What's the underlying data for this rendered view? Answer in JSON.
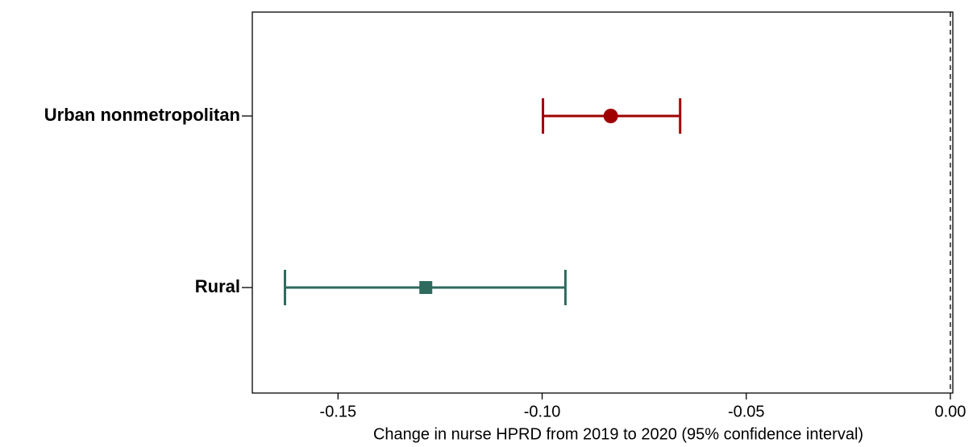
{
  "chart_data": {
    "type": "forest",
    "x_label": "Change in nurse HPRD from 2019 to 2020 (95% confidence interval)",
    "categories": [
      "Urban nonmetropolitan",
      "Rural"
    ],
    "values": [
      -0.0832,
      -0.1285
    ],
    "lower": [
      -0.0998,
      -0.163
    ],
    "upper": [
      -0.0662,
      -0.0943
    ],
    "colors": [
      "#a00000",
      "#2e6b5e"
    ],
    "markers": [
      "circle",
      "square"
    ],
    "xlim": [
      -0.171,
      0.0006
    ],
    "xticks": [
      {
        "value": -0.15,
        "label": "-0.15"
      },
      {
        "value": -0.1,
        "label": "-0.10"
      },
      {
        "value": -0.05,
        "label": "-0.05"
      },
      {
        "value": 0,
        "label": "0.00"
      }
    ],
    "reference_line": 0
  }
}
